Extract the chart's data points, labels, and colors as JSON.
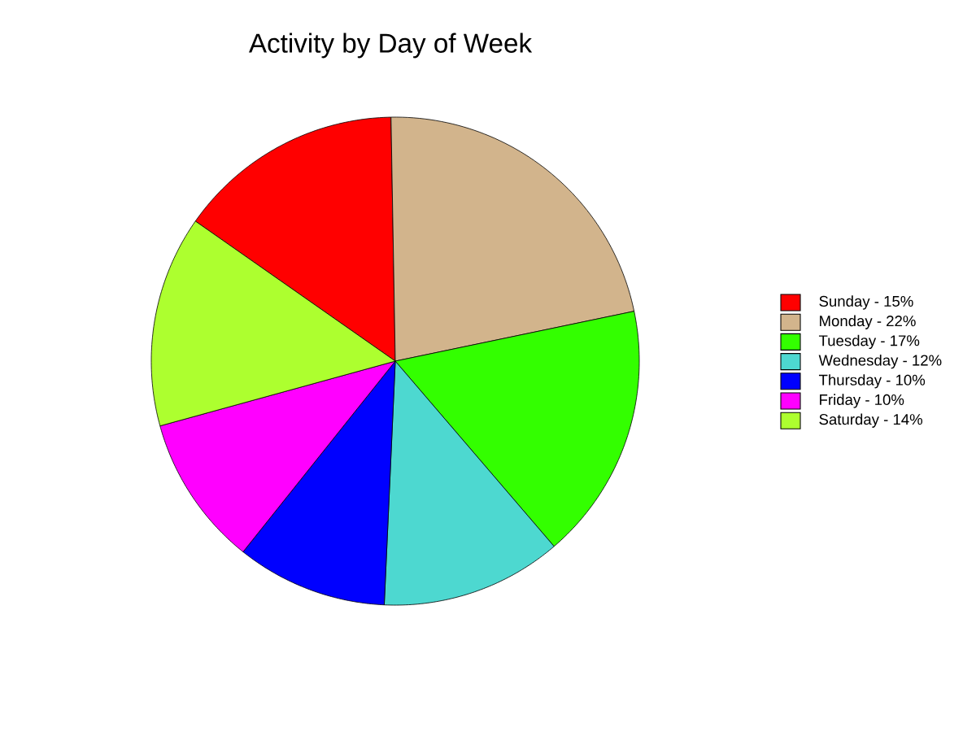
{
  "chart_data": {
    "type": "pie",
    "title": "Activity by Day of Week",
    "categories": [
      "Sunday - 15%",
      "Monday - 22%",
      "Tuesday - 17%",
      "Wednesday - 12%",
      "Thursday - 10%",
      "Friday - 10%",
      "Saturday - 14%"
    ],
    "values": [
      15,
      22,
      17,
      12,
      10,
      10,
      14
    ],
    "colors": [
      "#ff0000",
      "#d2b48c",
      "#33ff00",
      "#4dd8d0",
      "#0000ff",
      "#ff00ff",
      "#adff2f"
    ],
    "legend": "right"
  }
}
